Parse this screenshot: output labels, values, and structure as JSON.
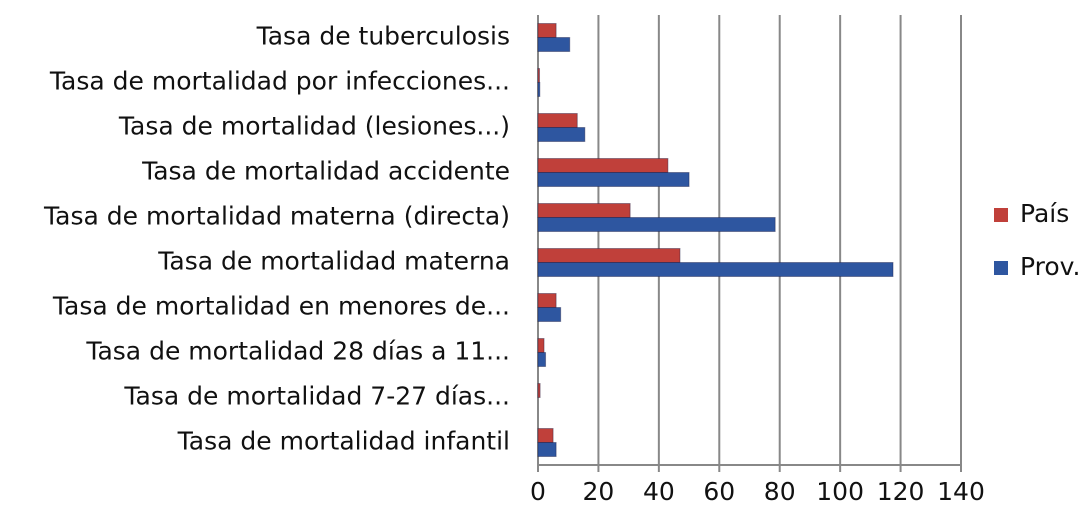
{
  "chart_data": {
    "type": "bar",
    "orientation": "horizontal",
    "categories": [
      "Tasa de tuberculosis",
      "Tasa de mortalidad por infecciones...",
      "Tasa de mortalidad (lesiones...)",
      "Tasa de mortalidad accidente",
      "Tasa de mortalidad materna (directa)",
      "Tasa de mortalidad materna",
      "Tasa de mortalidad en menores de...",
      "Tasa de mortalidad 28 días a 11...",
      "Tasa de mortalidad 7-27 días...",
      "Tasa de mortalidad infantil"
    ],
    "series": [
      {
        "name": "País",
        "color": "#c0403a",
        "values": [
          6,
          0.5,
          13,
          43,
          30.5,
          47,
          6,
          2,
          0.7,
          5
        ]
      },
      {
        "name": "Prov.",
        "color": "#2e56a0",
        "values": [
          10.5,
          0.6,
          15.5,
          50,
          78.5,
          117.5,
          7.5,
          2.5,
          0,
          6
        ]
      }
    ],
    "xlim": [
      0,
      140
    ],
    "xticks": [
      0,
      20,
      40,
      60,
      80,
      100,
      120,
      140
    ],
    "grid": true,
    "legend": "right"
  }
}
